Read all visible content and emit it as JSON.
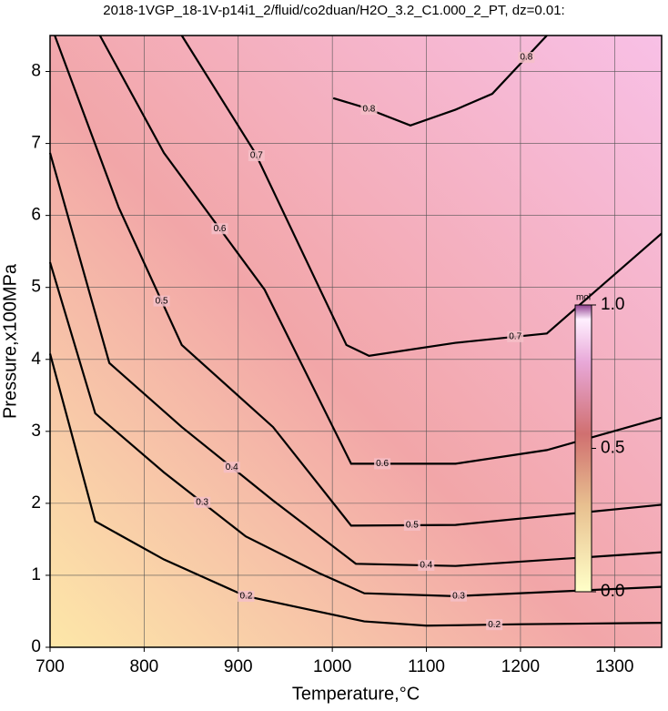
{
  "chart_data": {
    "type": "contour",
    "title": "2018-1VGP_18-1V-p14i1_2/fluid/co2duan/H2O_3.2_C1.000_2_PT, dz=0.01:",
    "x_label": "Temperature,°C",
    "y_label": "Pressure,x100MPa",
    "xlim": [
      700,
      1350
    ],
    "ylim": [
      0,
      8.5
    ],
    "xticks": [
      700,
      800,
      900,
      1000,
      1100,
      1200,
      1300
    ],
    "yticks": [
      0,
      1,
      2,
      3,
      4,
      5,
      6,
      7,
      8
    ],
    "grid": true,
    "series": [
      {
        "level": 0.2,
        "x": [
          700,
          748,
          821,
          908,
          1034,
          1100,
          1200,
          1350
        ],
        "y": [
          4.08,
          1.75,
          1.22,
          0.71,
          0.36,
          0.3,
          0.32,
          0.34
        ]
      },
      {
        "level": 0.3,
        "x": [
          700,
          748,
          821,
          908,
          986,
          1034,
          1131,
          1350
        ],
        "y": [
          5.35,
          3.25,
          2.43,
          1.54,
          1.03,
          0.75,
          0.71,
          0.84
        ]
      },
      {
        "level": 0.4,
        "x": [
          700,
          763,
          840,
          937,
          1025,
          1131,
          1350
        ],
        "y": [
          6.87,
          3.95,
          3.06,
          2.04,
          1.16,
          1.13,
          1.32
        ]
      },
      {
        "level": 0.5,
        "x": [
          705,
          773,
          840,
          937,
          1020,
          1131,
          1350
        ],
        "y": [
          8.5,
          6.11,
          4.2,
          3.06,
          1.69,
          1.7,
          1.98
        ]
      },
      {
        "level": 0.6,
        "x": [
          753,
          821,
          928,
          1020,
          1131,
          1228,
          1350
        ],
        "y": [
          8.5,
          6.87,
          4.97,
          2.55,
          2.55,
          2.74,
          3.19
        ]
      },
      {
        "level": 0.7,
        "x": [
          840,
          918,
          1015,
          1039,
          1131,
          1228,
          1350
        ],
        "y": [
          8.5,
          6.87,
          4.2,
          4.05,
          4.23,
          4.36,
          5.75
        ]
      },
      {
        "level": 0.8,
        "x": [
          1001,
          1034,
          1083,
          1131,
          1170,
          1228
        ],
        "y": [
          7.63,
          7.5,
          7.25,
          7.47,
          7.69,
          8.5
        ]
      }
    ],
    "colorbar": {
      "label": "mol",
      "lim": [
        0,
        1
      ],
      "ticks": [
        {
          "value": 0,
          "label": "0.0"
        },
        0.5,
        {
          "value": 1,
          "label": "1.0"
        }
      ]
    }
  }
}
